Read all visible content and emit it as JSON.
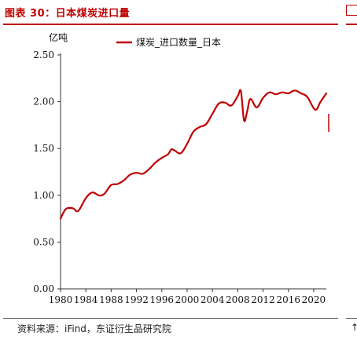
{
  "figure": {
    "title": "图表 30：日本煤炭进口量",
    "source": "资料来源：iFind，东证衍生品研究院",
    "accent_color": "#c00000",
    "right_fragment_text": "",
    "bottom_fragment_text": "↑"
  },
  "chart_data": {
    "type": "line",
    "title": "",
    "xlabel": "",
    "ylabel": "亿吨",
    "xlim": [
      1980,
      2022
    ],
    "ylim": [
      0.0,
      2.5
    ],
    "x_ticks": [
      "1980",
      "1984",
      "1988",
      "1992",
      "1996",
      "2000",
      "2004",
      "2008",
      "2012",
      "2016",
      "2020"
    ],
    "y_ticks": [
      "0.00",
      "0.50",
      "1.00",
      "1.50",
      "2.00",
      "2.50"
    ],
    "grid": false,
    "legend": "top-center",
    "series": [
      {
        "name": "煤炭_进口数量_日本",
        "color": "#c00000",
        "x": [
          1980,
          1980.5,
          1981,
          1982,
          1982.5,
          1983,
          1984,
          1985,
          1986,
          1986.5,
          1987,
          1988,
          1989,
          1990,
          1991,
          1992,
          1993,
          1994,
          1995,
          1996,
          1997,
          1997.5,
          1998,
          1999,
          2000,
          2001,
          2002,
          2003,
          2004,
          2005,
          2006,
          2007,
          2008,
          2008.5,
          2009,
          2009.5,
          2010,
          2011,
          2012,
          2013,
          2014,
          2015,
          2016,
          2017,
          2018,
          2019,
          2020,
          2020.5,
          2021,
          2022
        ],
        "y": [
          0.75,
          0.82,
          0.86,
          0.86,
          0.83,
          0.85,
          0.97,
          1.03,
          1.0,
          1.0,
          1.02,
          1.11,
          1.12,
          1.16,
          1.22,
          1.24,
          1.23,
          1.28,
          1.35,
          1.4,
          1.44,
          1.49,
          1.48,
          1.45,
          1.55,
          1.68,
          1.73,
          1.76,
          1.87,
          1.98,
          1.99,
          1.96,
          2.06,
          2.11,
          1.8,
          1.9,
          2.03,
          1.94,
          2.04,
          2.1,
          2.08,
          2.1,
          2.09,
          2.12,
          2.09,
          2.05,
          1.93,
          1.92,
          1.99,
          2.09
        ]
      }
    ],
    "annotations": []
  }
}
